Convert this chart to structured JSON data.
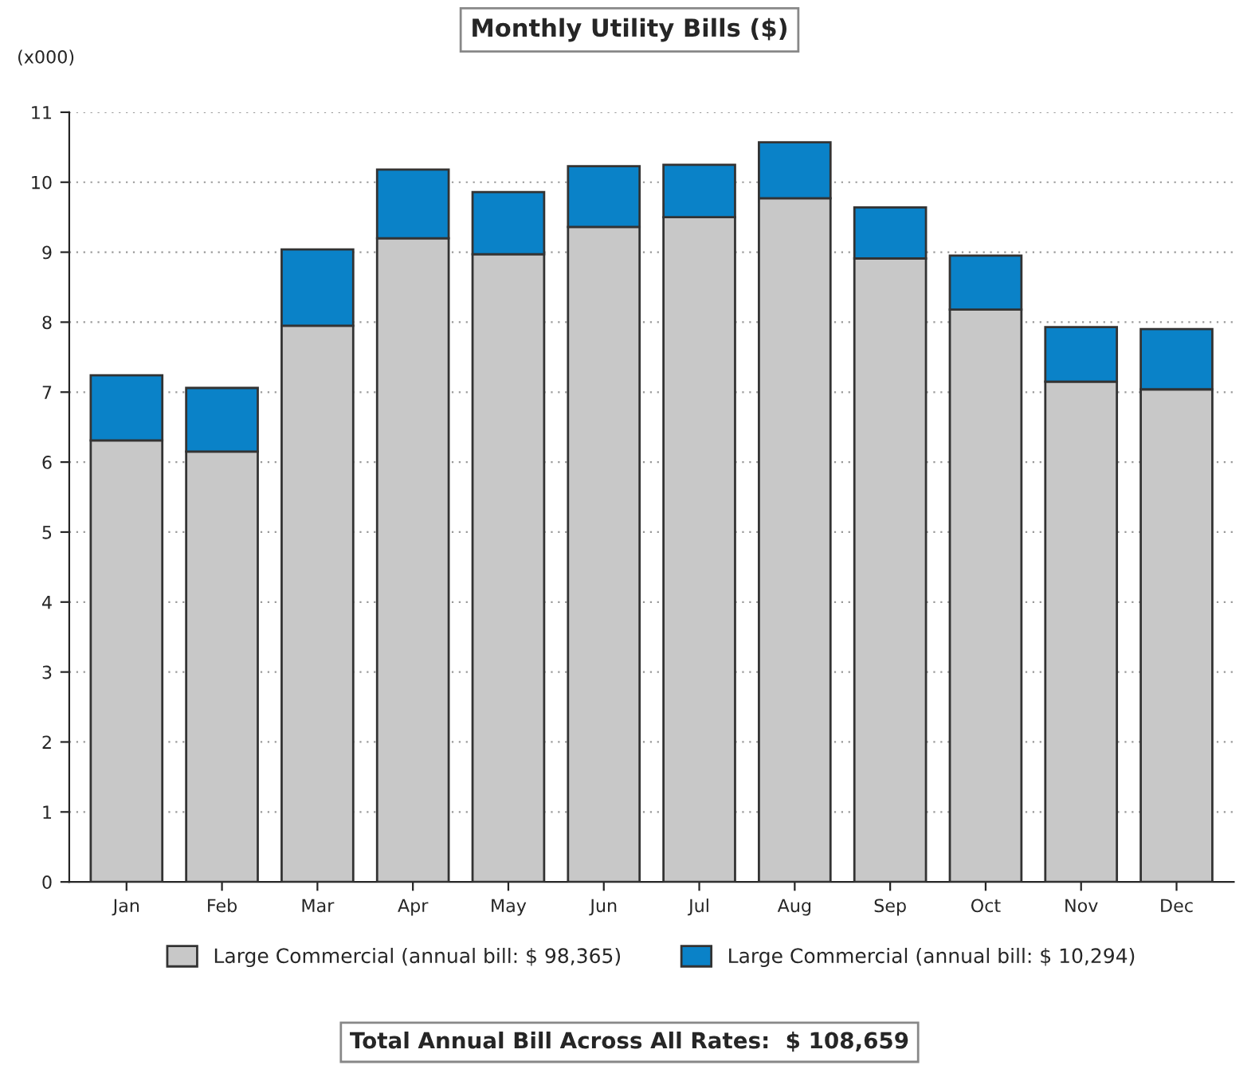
{
  "chart_data": {
    "type": "bar",
    "title": "Monthly Utility Bills ($)",
    "ylabel": "(x000)",
    "categories": [
      "Jan",
      "Feb",
      "Mar",
      "Apr",
      "May",
      "Jun",
      "Jul",
      "Aug",
      "Sep",
      "Oct",
      "Nov",
      "Dec"
    ],
    "stacked": true,
    "series": [
      {
        "name": "Large Commercial (annual bill: $ 98,365)",
        "color": "#c8c8c8",
        "values": [
          6.31,
          6.15,
          7.95,
          9.2,
          8.97,
          9.36,
          9.5,
          9.77,
          8.91,
          8.18,
          7.15,
          7.04
        ]
      },
      {
        "name": "Large Commercial (annual bill: $ 10,294)",
        "color": "#0a82c8",
        "values": [
          0.93,
          0.91,
          1.09,
          0.98,
          0.89,
          0.87,
          0.75,
          0.8,
          0.73,
          0.77,
          0.78,
          0.86
        ]
      }
    ],
    "ylim": [
      0,
      11
    ],
    "yticks": [
      0,
      1,
      2,
      3,
      4,
      5,
      6,
      7,
      8,
      9,
      10,
      11
    ],
    "grid": "y",
    "legend": "bottom",
    "annotations": [
      "Total Annual Bill Across All Rates:  $ 108,659"
    ]
  }
}
